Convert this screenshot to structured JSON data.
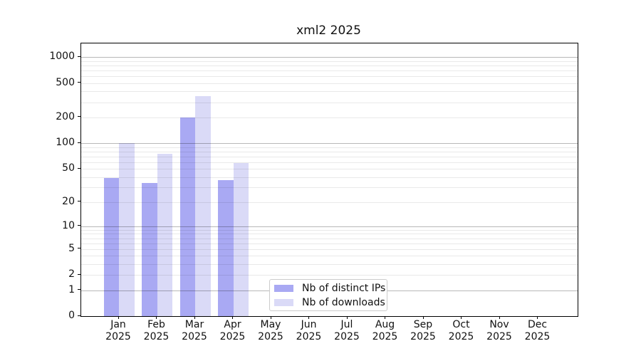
{
  "chart_data": {
    "type": "bar",
    "title": "xml2 2025",
    "categories": [
      "Jan",
      "Feb",
      "Mar",
      "Apr",
      "May",
      "Jun",
      "Jul",
      "Aug",
      "Sep",
      "Oct",
      "Nov",
      "Dec"
    ],
    "year": "2025",
    "series": [
      {
        "name": "Nb of distinct IPs",
        "color": "#a9a9f3",
        "values": [
          39,
          34,
          200,
          37,
          null,
          null,
          null,
          null,
          null,
          null,
          null,
          null
        ]
      },
      {
        "name": "Nb of downloads",
        "color": "#dadaf7",
        "values": [
          100,
          75,
          355,
          58,
          null,
          null,
          null,
          null,
          null,
          null,
          null,
          null
        ]
      }
    ],
    "y_scale": "log1p",
    "ylim": [
      0,
      1443
    ],
    "y_max": 1443,
    "y_ticks": [
      1000,
      500,
      200,
      100,
      50,
      20,
      10,
      5,
      2,
      1,
      0
    ],
    "grid": {
      "major": [
        1,
        10,
        100,
        1000
      ],
      "minor": [
        2,
        3,
        4,
        5,
        6,
        7,
        8,
        9,
        20,
        30,
        40,
        50,
        60,
        70,
        80,
        90,
        200,
        300,
        400,
        500,
        600,
        700,
        800,
        900
      ]
    },
    "legend_position": "bottom-center",
    "xlabel": "",
    "ylabel": ""
  }
}
